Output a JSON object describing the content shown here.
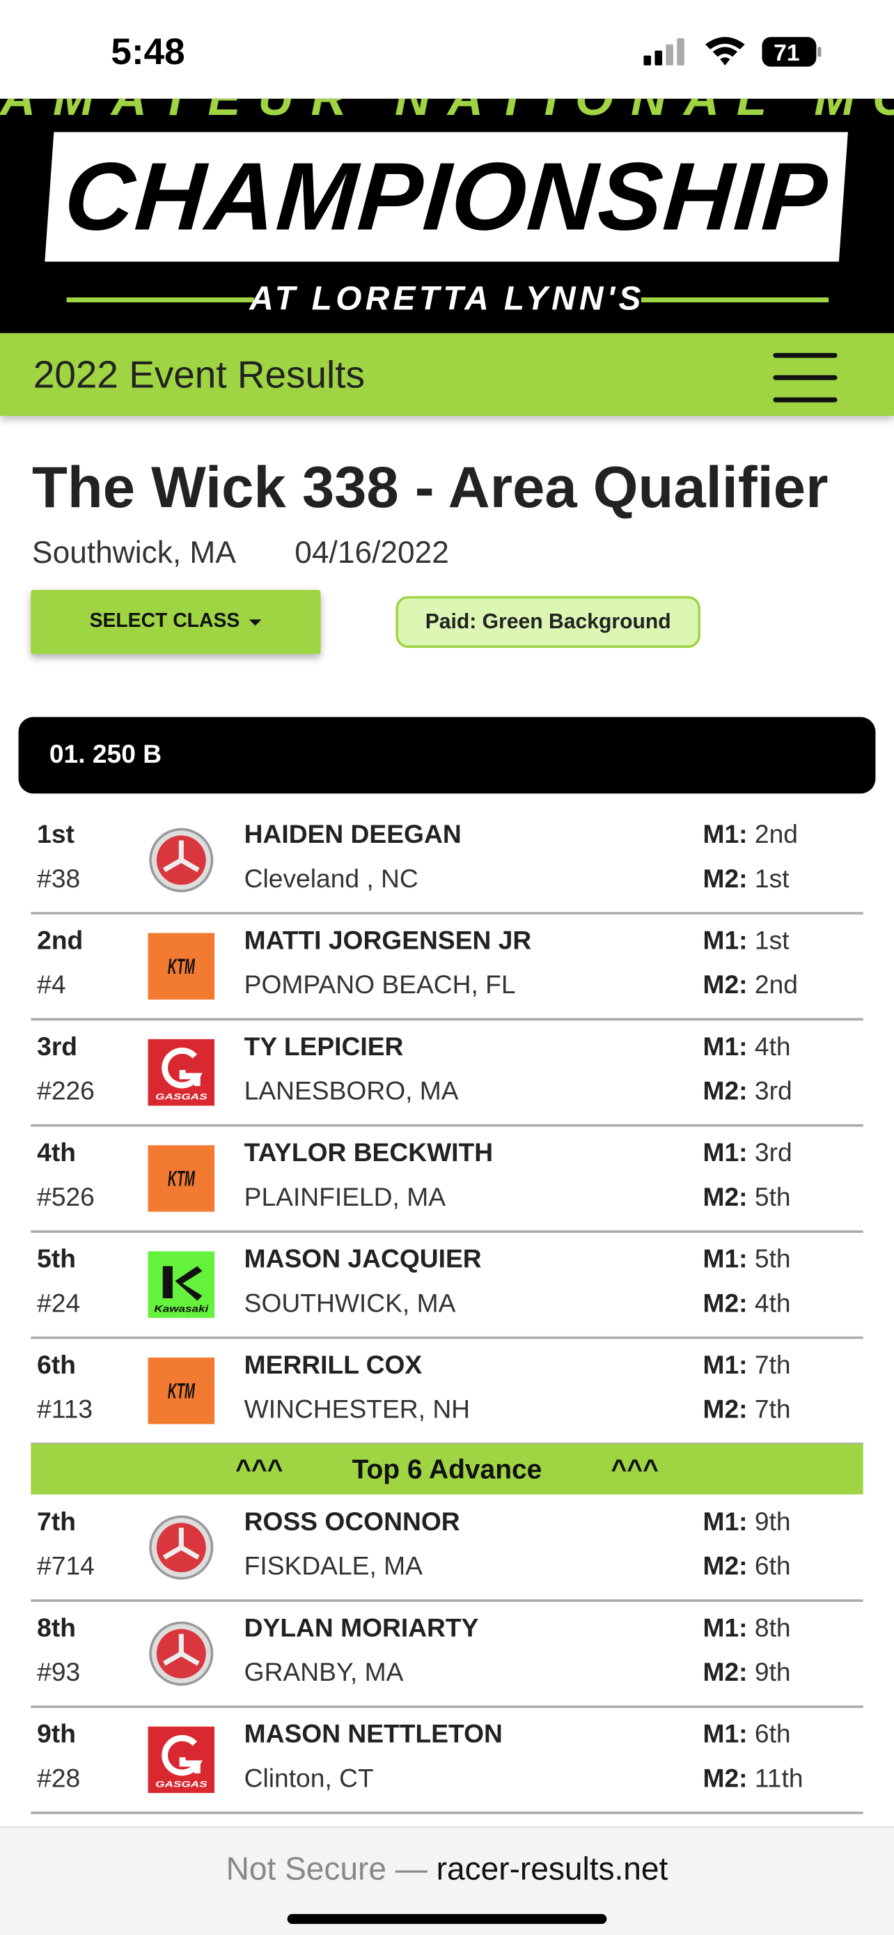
{
  "status_bar": {
    "time": "5:48",
    "battery": "71"
  },
  "banner": {
    "top_text": "AMATEUR NATIONAL MOTOCROSS",
    "title": "CHAMPIONSHIP",
    "subtitle": "AT LORETTA LYNN'S"
  },
  "nav": {
    "title": "2022 Event Results"
  },
  "event": {
    "title": "The Wick 338 - Area Qualifier",
    "location": "Southwick, MA",
    "date": "04/16/2022",
    "select_button": "SELECT CLASS",
    "paid_note": "Paid: Green Background"
  },
  "class_header": "01. 250 B",
  "moto_labels": {
    "m1": "M1:",
    "m2": "M2:"
  },
  "advance_banner": {
    "left": "^^^",
    "text": "Top 6 Advance",
    "right": "^^^",
    "after_row": 6
  },
  "results": [
    {
      "place": "1st",
      "number": "#38",
      "name": "HAIDEN DEEGAN",
      "hometown": "Cleveland , NC",
      "m1": "2nd",
      "m2": "1st"
    },
    {
      "place": "2nd",
      "number": "#4",
      "logo": "KTM",
      "name": "MATTI JORGENSEN JR",
      "hometown": "POMPANO BEACH, FL",
      "m1": "1st",
      "m2": "2nd"
    },
    {
      "place": "3rd",
      "number": "#226",
      "logo": "GASGAS",
      "name": "TY LEPICIER",
      "hometown": "LANESBORO, MA",
      "m1": "4th",
      "m2": "3rd"
    },
    {
      "place": "4th",
      "number": "#526",
      "logo": "KTM",
      "name": "TAYLOR BECKWITH",
      "hometown": "PLAINFIELD, MA",
      "m1": "3rd",
      "m2": "5th"
    },
    {
      "place": "5th",
      "number": "#24",
      "logo": "Kawasaki",
      "name": "MASON JACQUIER",
      "hometown": "SOUTHWICK, MA",
      "m1": "5th",
      "m2": "4th"
    },
    {
      "place": "6th",
      "number": "#113",
      "logo": "KTM",
      "name": "MERRILL COX",
      "hometown": "WINCHESTER, NH",
      "m1": "7th",
      "m2": "7th"
    },
    {
      "place": "7th",
      "number": "#714",
      "name": "ROSS OCONNOR",
      "hometown": "FISKDALE, MA",
      "m1": "9th",
      "m2": "6th"
    },
    {
      "place": "8th",
      "number": "#93",
      "name": "DYLAN MORIARTY",
      "hometown": "GRANBY, MA",
      "m1": "8th",
      "m2": "9th"
    },
    {
      "place": "9th",
      "number": "#28",
      "logo": "GASGAS",
      "name": "MASON NETTLETON",
      "hometown": "Clinton, CT",
      "m1": "6th",
      "m2": "11th"
    }
  ],
  "footer": {
    "security": "Not Secure —",
    "domain": "racer-results.net"
  }
}
